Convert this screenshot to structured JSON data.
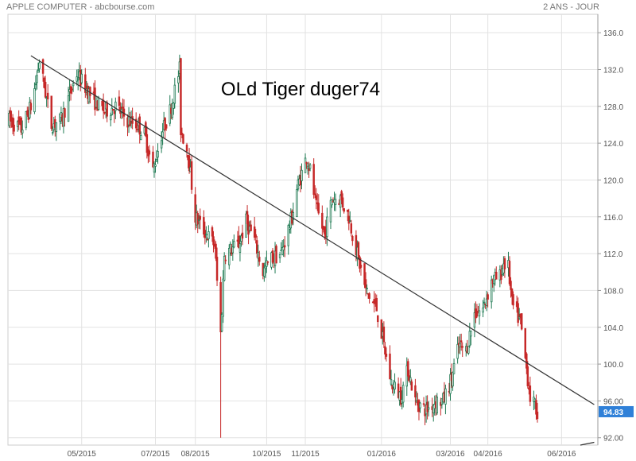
{
  "header": {
    "title": "APPLE COMPUTER - abcbourse.com",
    "period": "2 ANS - JOUR"
  },
  "chart_data": {
    "type": "candlestick",
    "title": "APPLE COMPUTER - abcbourse.com",
    "period": "2 ANS - JOUR",
    "annotation": "OLd Tiger duger74",
    "last_price_label": "94.83",
    "last_price": 94.83,
    "ylim": [
      91.2,
      138
    ],
    "y_ticks": [
      "92.00",
      "96.00",
      "100.0",
      "104.0",
      "108.0",
      "112.0",
      "116.0",
      "120.0",
      "124.0",
      "128.0",
      "132.0",
      "136.0"
    ],
    "x_ticks": [
      "05/2015",
      "07/2015",
      "08/2015",
      "10/2015",
      "11/2015",
      "01/2016",
      "03/2016",
      "04/2016",
      "06/2016"
    ],
    "grid": true,
    "colors": {
      "up": "#1f7a53",
      "down": "#c62828",
      "grid": "#e2e2e2",
      "trendline": "#333333",
      "price_tag": "#2f80d8"
    },
    "trendlines": [
      {
        "from": {
          "date": "2015-03-20",
          "price": 133.5
        },
        "to": {
          "date": "2016-06-28",
          "price": 95.6
        }
      },
      {
        "from": {
          "date": "2016-04-28",
          "price": 89.9
        },
        "to": {
          "date": "2016-06-28",
          "price": 91.5
        }
      }
    ],
    "anchors": [
      [
        "2015-03-02",
        126.5
      ],
      [
        "2015-03-12",
        125.5
      ],
      [
        "2015-03-20",
        128.0
      ],
      [
        "2015-03-24",
        130.5
      ],
      [
        "2015-03-27",
        133.0
      ],
      [
        "2015-04-06",
        126.0
      ],
      [
        "2015-04-14",
        126.5
      ],
      [
        "2015-04-27",
        131.5
      ],
      [
        "2015-05-12",
        128.5
      ],
      [
        "2015-05-20",
        127.5
      ],
      [
        "2015-05-29",
        128.0
      ],
      [
        "2015-06-08",
        126.5
      ],
      [
        "2015-06-16",
        126.0
      ],
      [
        "2015-06-22",
        125.0
      ],
      [
        "2015-06-29",
        121.0
      ],
      [
        "2015-07-06",
        125.0
      ],
      [
        "2015-07-13",
        127.5
      ],
      [
        "2015-07-21",
        132.0
      ],
      [
        "2015-07-22",
        125.5
      ],
      [
        "2015-07-28",
        123.0
      ],
      [
        "2015-08-03",
        116.0
      ],
      [
        "2015-08-10",
        114.5
      ],
      [
        "2015-08-19",
        113.0
      ],
      [
        "2015-08-24",
        103.0
      ],
      [
        "2015-08-27",
        112.0
      ],
      [
        "2015-09-08",
        113.0
      ],
      [
        "2015-09-14",
        115.5
      ],
      [
        "2015-09-21",
        113.5
      ],
      [
        "2015-09-28",
        110.0
      ],
      [
        "2015-10-05",
        111.5
      ],
      [
        "2015-10-13",
        112.0
      ],
      [
        "2015-10-22",
        116.0
      ],
      [
        "2015-10-26",
        119.0
      ],
      [
        "2015-11-03",
        122.5
      ],
      [
        "2015-11-06",
        121.0
      ],
      [
        "2015-11-11",
        117.0
      ],
      [
        "2015-11-18",
        114.0
      ],
      [
        "2015-11-24",
        118.0
      ],
      [
        "2015-12-01",
        118.0
      ],
      [
        "2015-12-08",
        116.0
      ],
      [
        "2015-12-14",
        112.5
      ],
      [
        "2015-12-22",
        108.0
      ],
      [
        "2015-12-31",
        106.0
      ],
      [
        "2016-01-06",
        102.0
      ],
      [
        "2016-01-12",
        98.0
      ],
      [
        "2016-01-20",
        96.5
      ],
      [
        "2016-01-26",
        99.5
      ],
      [
        "2016-02-01",
        96.0
      ],
      [
        "2016-02-10",
        95.0
      ],
      [
        "2016-02-18",
        96.0
      ],
      [
        "2016-02-24",
        96.0
      ],
      [
        "2016-03-02",
        98.5
      ],
      [
        "2016-03-08",
        102.0
      ],
      [
        "2016-03-14",
        101.5
      ],
      [
        "2016-03-21",
        105.5
      ],
      [
        "2016-03-28",
        106.0
      ],
      [
        "2016-04-04",
        109.0
      ],
      [
        "2016-04-11",
        109.5
      ],
      [
        "2016-04-14",
        111.0
      ],
      [
        "2016-04-18",
        110.5
      ],
      [
        "2016-04-21",
        106.5
      ],
      [
        "2016-04-28",
        104.5
      ],
      [
        "2016-05-06",
        96.5
      ],
      [
        "2016-05-12",
        94.8
      ]
    ]
  }
}
